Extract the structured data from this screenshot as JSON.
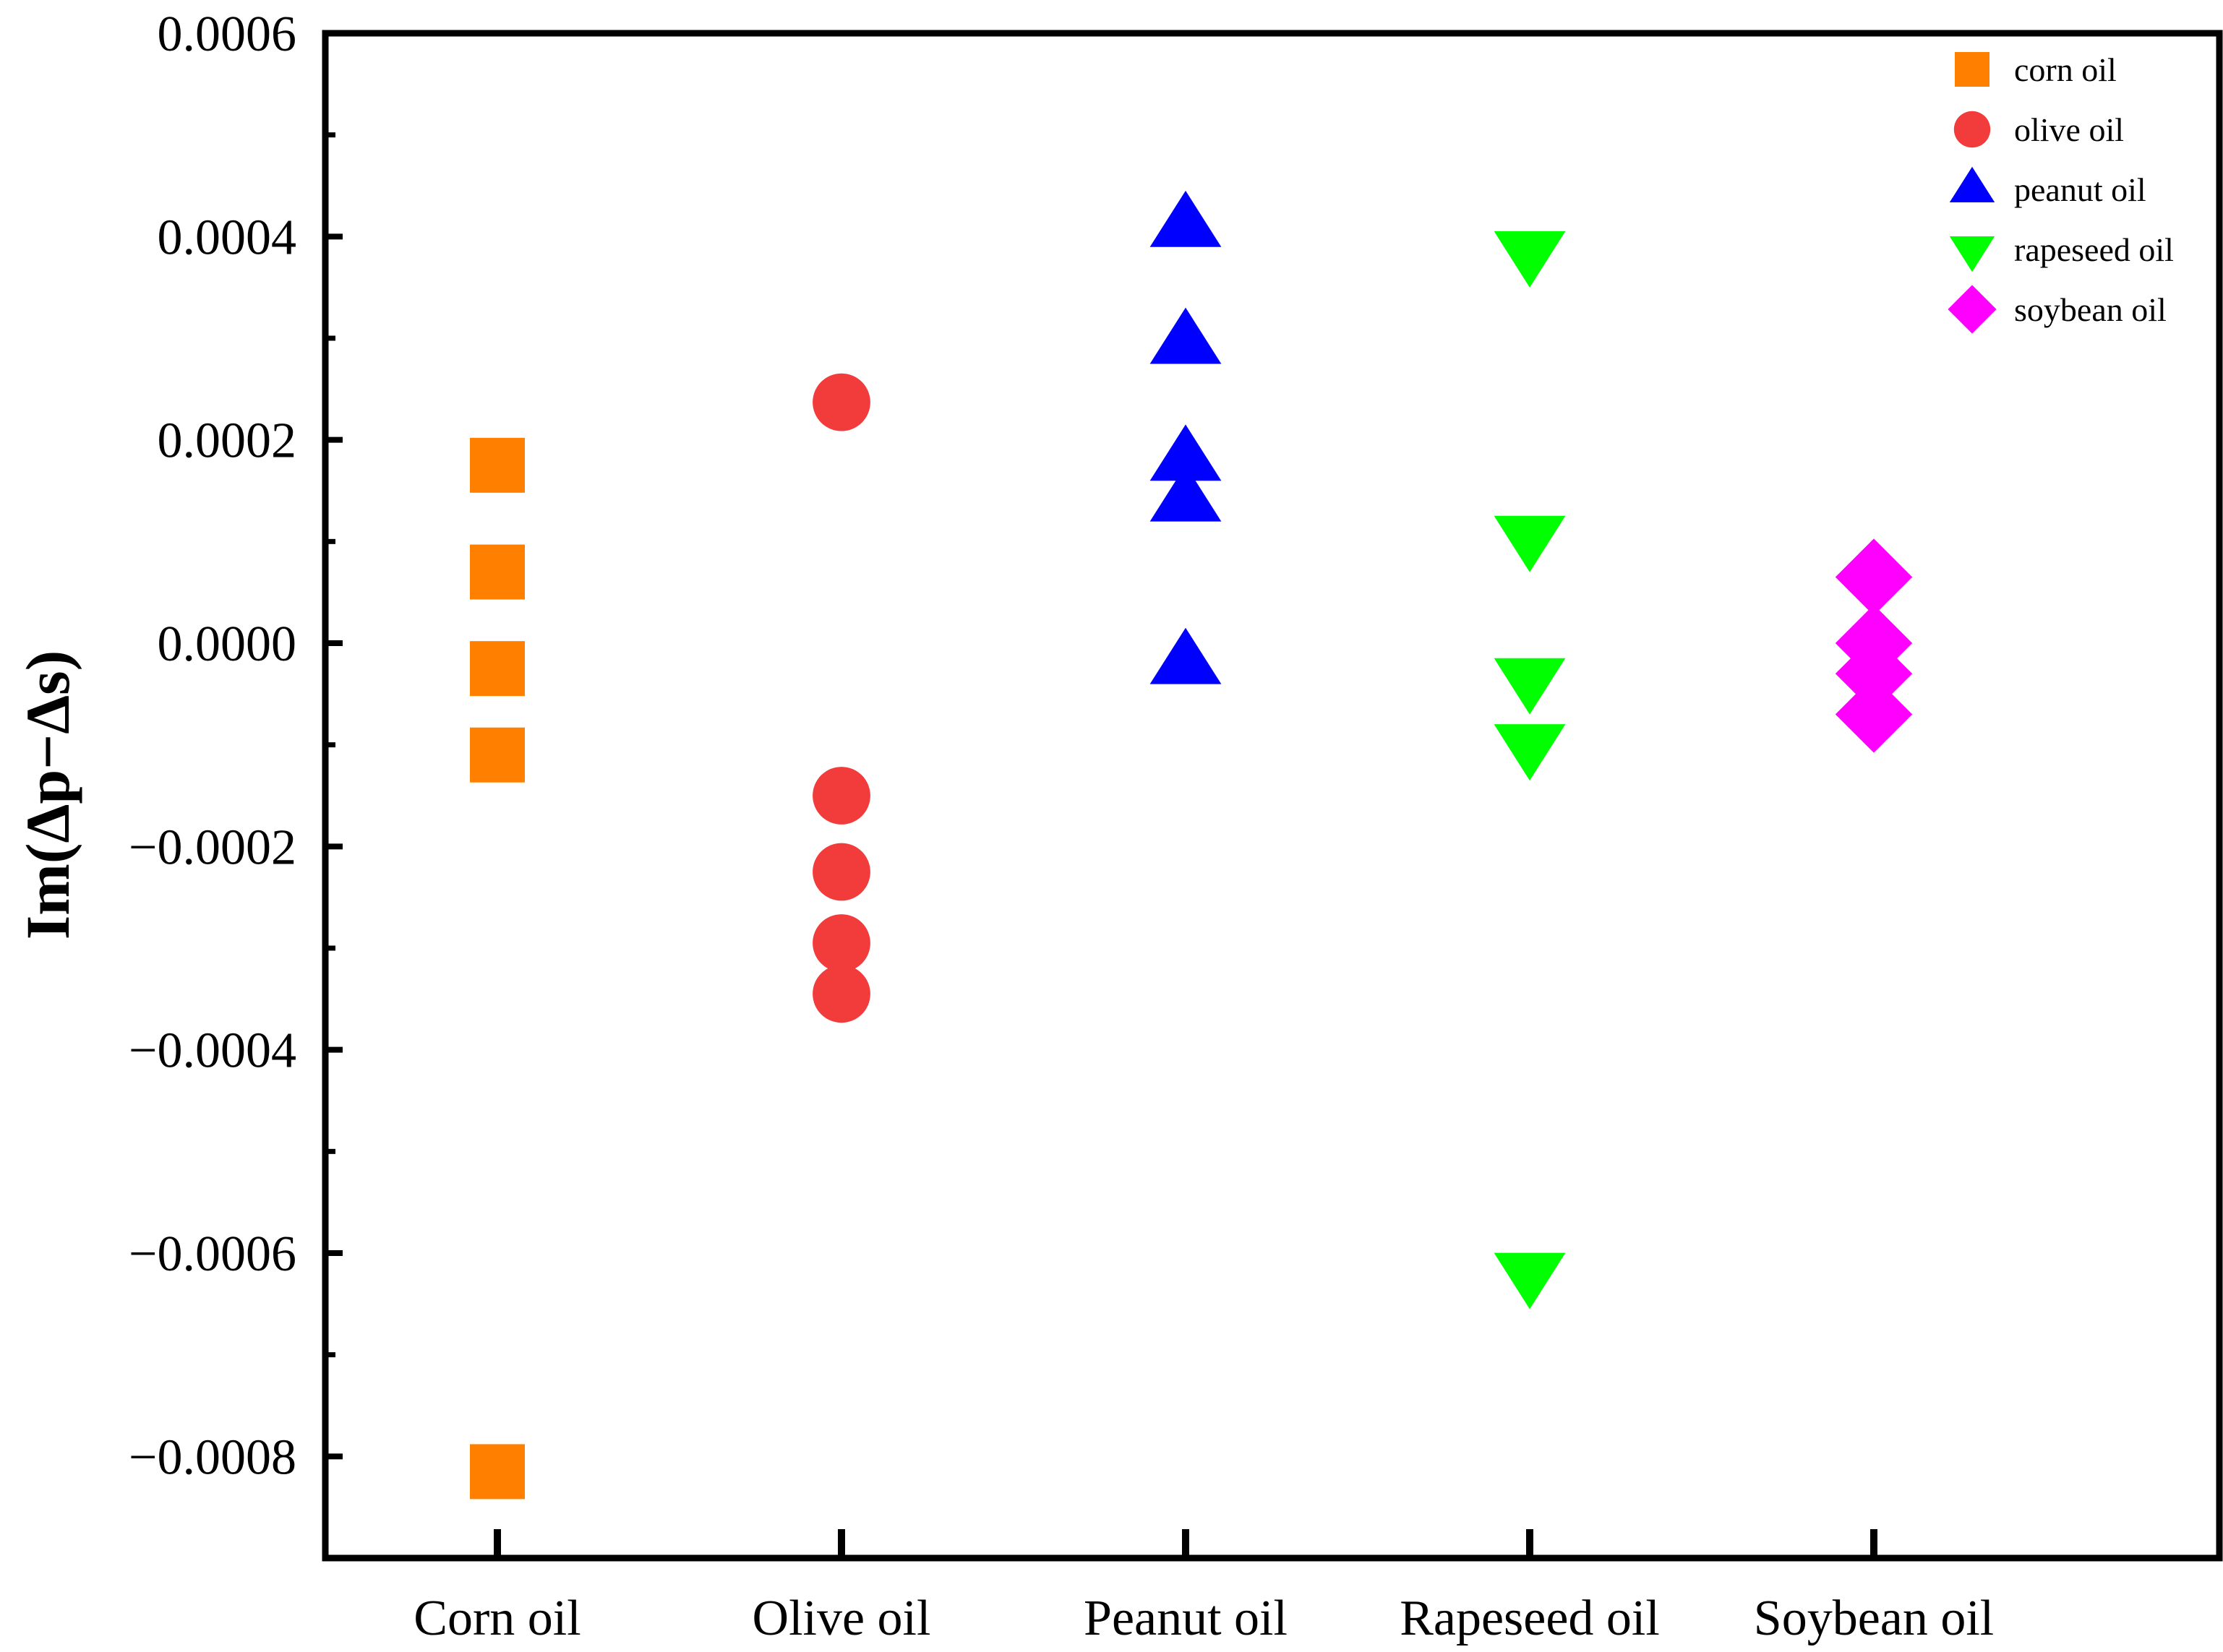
{
  "chart_data": {
    "type": "scatter",
    "title": "",
    "xlabel": "",
    "ylabel": "Im(Δp−Δs)",
    "categories": [
      "Corn oil",
      "Olive oil",
      "Peanut oil",
      "Rapeseed oil",
      "Soybean oil"
    ],
    "ylim": [
      -0.0009,
      0.0006
    ],
    "yticks": [
      {
        "value": 0.0006,
        "label": "0.0006"
      },
      {
        "value": 0.0004,
        "label": "0.0004"
      },
      {
        "value": 0.0002,
        "label": "0.0002"
      },
      {
        "value": 0.0,
        "label": "0.0000"
      },
      {
        "value": -0.0002,
        "label": "−0.0002"
      },
      {
        "value": -0.0004,
        "label": "−0.0004"
      },
      {
        "value": -0.0006,
        "label": "−0.0006"
      },
      {
        "value": -0.0008,
        "label": "−0.0008"
      }
    ],
    "grid": false,
    "legend_position": "top-right",
    "series": [
      {
        "name": "corn oil",
        "category": "Corn oil",
        "marker": "square",
        "color": "#FF8000",
        "values": [
          0.000175,
          7e-05,
          -2.5e-05,
          -0.00011,
          -0.000815
        ]
      },
      {
        "name": "olive oil",
        "category": "Olive oil",
        "marker": "circle",
        "color": "#F23B3B",
        "values": [
          0.000237,
          -0.00015,
          -0.000225,
          -0.000295,
          -0.000345
        ]
      },
      {
        "name": "peanut oil",
        "category": "Peanut oil",
        "marker": "triangle-up",
        "color": "#0000FF",
        "values": [
          0.00041,
          0.000295,
          0.00018,
          0.00014,
          -2e-05
        ]
      },
      {
        "name": "rapeseed oil",
        "category": "Rapeseed oil",
        "marker": "triangle-down",
        "color": "#00FF00",
        "values": [
          0.000385,
          0.000105,
          -3.5e-05,
          -0.0001,
          -0.00062
        ]
      },
      {
        "name": "soybean oil",
        "category": "Soybean oil",
        "marker": "diamond",
        "color": "#FF00FF",
        "values": [
          6.5e-05,
          0.0,
          -3e-05,
          -7e-05
        ]
      }
    ]
  }
}
